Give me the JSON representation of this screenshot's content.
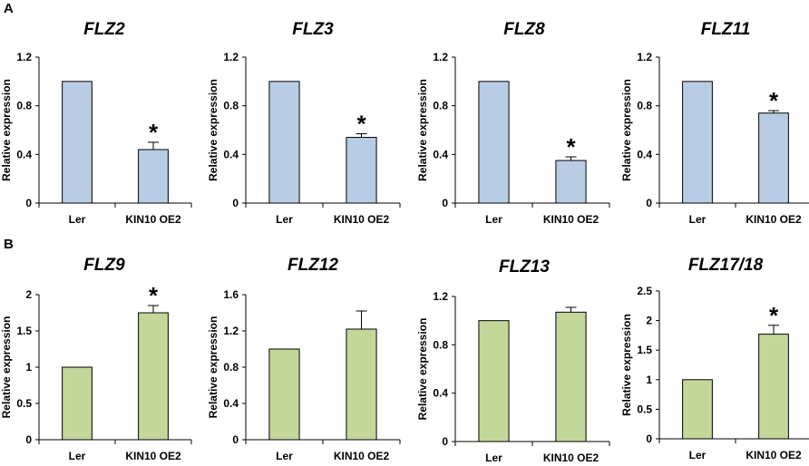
{
  "panel_labels": [
    "A",
    "B"
  ],
  "colors": {
    "row_a": "#b8cce4",
    "row_b": "#c4d79b",
    "stroke": "#000000"
  },
  "chart_data": [
    {
      "type": "bar",
      "title": "FLZ2",
      "ylabel": "Relative expression",
      "xlabel": "",
      "categories": [
        "Ler",
        "KIN10 OE2"
      ],
      "values": [
        1.0,
        0.44
      ],
      "errors": [
        0,
        0.06
      ],
      "significant": [
        false,
        true
      ],
      "ylim": [
        0,
        1.2
      ],
      "yticks": [
        "0",
        "0.4",
        "0.8",
        "1.2"
      ]
    },
    {
      "type": "bar",
      "title": "FLZ3",
      "ylabel": "Relative expression",
      "xlabel": "",
      "categories": [
        "Ler",
        "KIN10 OE2"
      ],
      "values": [
        1.0,
        0.54
      ],
      "errors": [
        0,
        0.03
      ],
      "significant": [
        false,
        true
      ],
      "ylim": [
        0,
        1.2
      ],
      "yticks": [
        "0",
        "0.4",
        "0.8",
        "1.2"
      ]
    },
    {
      "type": "bar",
      "title": "FLZ8",
      "ylabel": "Relative expression",
      "xlabel": "",
      "categories": [
        "Ler",
        "KIN10 OE2"
      ],
      "values": [
        1.0,
        0.35
      ],
      "errors": [
        0,
        0.03
      ],
      "significant": [
        false,
        true
      ],
      "ylim": [
        0,
        1.2
      ],
      "yticks": [
        "0",
        "0.4",
        "0.8",
        "1.2"
      ]
    },
    {
      "type": "bar",
      "title": "FLZ11",
      "ylabel": "Relative expression",
      "xlabel": "",
      "categories": [
        "Ler",
        "KIN10 OE2"
      ],
      "values": [
        1.0,
        0.74
      ],
      "errors": [
        0,
        0.02
      ],
      "significant": [
        false,
        true
      ],
      "ylim": [
        0,
        1.2
      ],
      "yticks": [
        "0",
        "0.4",
        "0.8",
        "1.2"
      ]
    },
    {
      "type": "bar",
      "title": "FLZ9",
      "ylabel": "Relative expression",
      "xlabel": "",
      "categories": [
        "Ler",
        "KIN10 OE2"
      ],
      "values": [
        1.0,
        1.75
      ],
      "errors": [
        0,
        0.1
      ],
      "significant": [
        false,
        true
      ],
      "ylim": [
        0,
        2
      ],
      "yticks": [
        "0",
        "0.5",
        "1",
        "1.5",
        "2"
      ]
    },
    {
      "type": "bar",
      "title": "FLZ12",
      "ylabel": "Relative expression",
      "xlabel": "",
      "categories": [
        "Ler",
        "KIN10 OE2"
      ],
      "values": [
        1.0,
        1.22
      ],
      "errors": [
        0,
        0.2
      ],
      "significant": [
        false,
        false
      ],
      "ylim": [
        0,
        1.6
      ],
      "yticks": [
        "0",
        "0.4",
        "0.8",
        "1.2",
        "1.6"
      ]
    },
    {
      "type": "bar",
      "title": "FLZ13",
      "ylabel": "Relative expression",
      "xlabel": "",
      "categories": [
        "Ler",
        "KIN10 OE2"
      ],
      "values": [
        1.0,
        1.07
      ],
      "errors": [
        0,
        0.04
      ],
      "significant": [
        false,
        false
      ],
      "ylim": [
        0,
        1.2
      ],
      "yticks": [
        "0",
        "0.4",
        "0.8",
        "1.2"
      ]
    },
    {
      "type": "bar",
      "title": "FLZ17/18",
      "ylabel": "Relative expression",
      "xlabel": "",
      "categories": [
        "Ler",
        "KIN10 OE2"
      ],
      "values": [
        1.0,
        1.77
      ],
      "errors": [
        0,
        0.15
      ],
      "significant": [
        false,
        true
      ],
      "ylim": [
        0,
        2.5
      ],
      "yticks": [
        "0",
        "0.5",
        "1",
        "1.5",
        "2",
        "2.5"
      ]
    }
  ],
  "significance_mark": "*"
}
